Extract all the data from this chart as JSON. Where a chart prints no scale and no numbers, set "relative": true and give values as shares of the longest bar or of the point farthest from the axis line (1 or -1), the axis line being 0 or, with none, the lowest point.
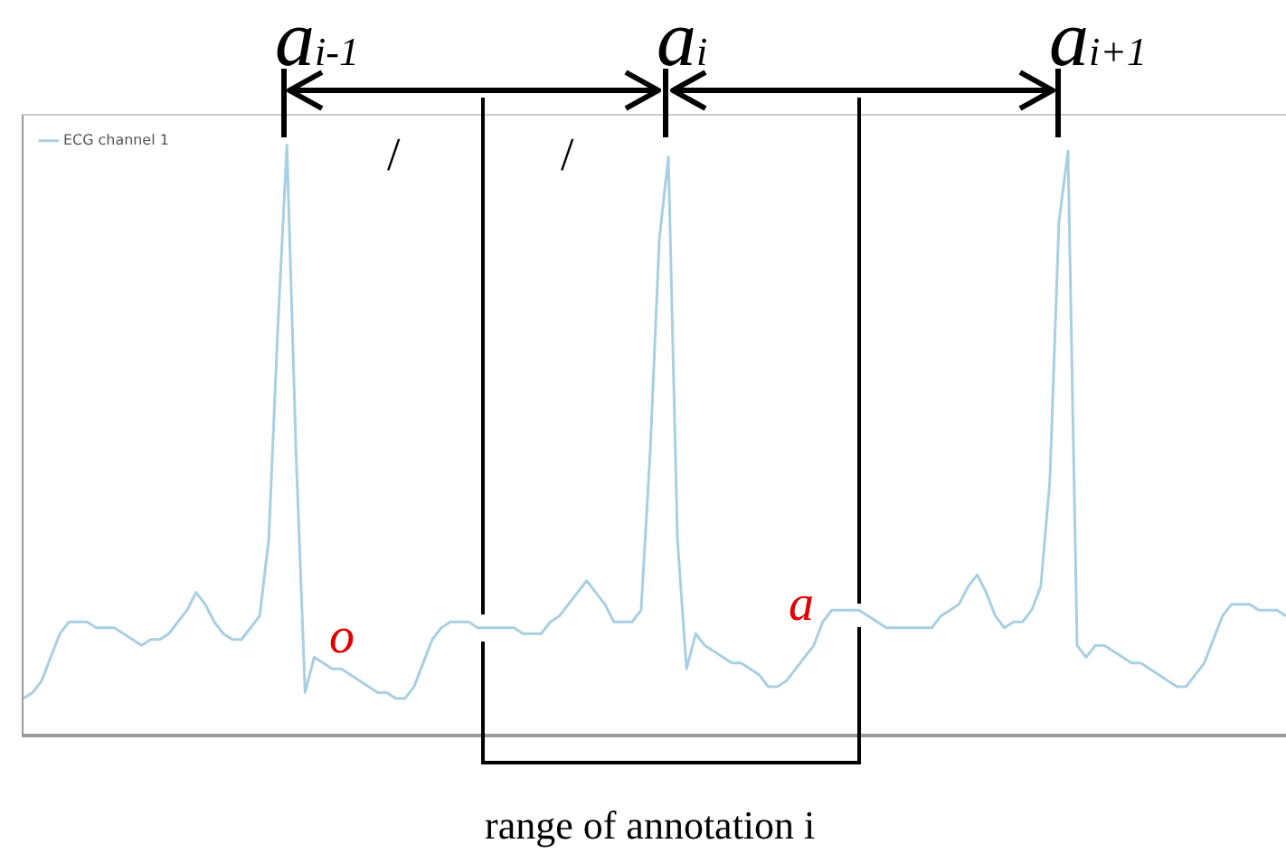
{
  "chart_data": {
    "type": "line",
    "relative": true,
    "legend": "top left",
    "grid": false,
    "marker": "none",
    "line_style": "solid",
    "categories": [
      null,
      null,
      null,
      null,
      null,
      null,
      null,
      null,
      null,
      null,
      null,
      null,
      null,
      null,
      null,
      null,
      null,
      null,
      null,
      null,
      null,
      null,
      null,
      null,
      null,
      null,
      null,
      null,
      null,
      null,
      null,
      null,
      null,
      null,
      null,
      null,
      null,
      null,
      null,
      null,
      null,
      null,
      null,
      null,
      null,
      null,
      null,
      null,
      null,
      null,
      null,
      null,
      null,
      null,
      null,
      null,
      null,
      null,
      null,
      null,
      null,
      null,
      null,
      null,
      null,
      null,
      null,
      null,
      null,
      null,
      null,
      null,
      null,
      null,
      null,
      null,
      null,
      null,
      null,
      null,
      null,
      null,
      null,
      null,
      null,
      null,
      null,
      null,
      null,
      null,
      null,
      null,
      null,
      null,
      null,
      null,
      null,
      null,
      null,
      null,
      null,
      null,
      null,
      null,
      null,
      null,
      null,
      null,
      null,
      null,
      null,
      null,
      null,
      null,
      null,
      null,
      null,
      null,
      null,
      null,
      null,
      null,
      null,
      null,
      null,
      null,
      null,
      null,
      null,
      null,
      null,
      null,
      null,
      null,
      null,
      null,
      null,
      null,
      null,
      null
    ],
    "series": [
      {
        "name": "ECG channel 1",
        "color": "#a9cfe3",
        "values": [
          0.06,
          0.07,
          0.09,
          0.13,
          0.17,
          0.19,
          0.19,
          0.19,
          0.18,
          0.18,
          0.18,
          0.17,
          0.16,
          0.15,
          0.16,
          0.16,
          0.17,
          0.19,
          0.21,
          0.24,
          0.22,
          0.19,
          0.17,
          0.16,
          0.16,
          0.18,
          0.2,
          0.33,
          0.69,
          1.0,
          0.48,
          0.07,
          0.13,
          0.12,
          0.11,
          0.11,
          0.1,
          0.09,
          0.08,
          0.07,
          0.07,
          0.06,
          0.06,
          0.08,
          0.12,
          0.16,
          0.18,
          0.19,
          0.19,
          0.19,
          0.18,
          0.18,
          0.18,
          0.18,
          0.18,
          0.17,
          0.17,
          0.17,
          0.19,
          0.2,
          0.22,
          0.24,
          0.26,
          0.24,
          0.22,
          0.19,
          0.19,
          0.19,
          0.21,
          0.48,
          0.84,
          0.98,
          0.33,
          0.11,
          0.17,
          0.15,
          0.14,
          0.13,
          0.12,
          0.12,
          0.11,
          0.1,
          0.08,
          0.08,
          0.09,
          0.11,
          0.13,
          0.15,
          0.19,
          0.21,
          0.21,
          0.21,
          0.21,
          0.2,
          0.19,
          0.18,
          0.18,
          0.18,
          0.18,
          0.18,
          0.18,
          0.2,
          0.21,
          0.22,
          0.25,
          0.27,
          0.24,
          0.2,
          0.18,
          0.19,
          0.19,
          0.21,
          0.25,
          0.43,
          0.87,
          0.99,
          0.15,
          0.13,
          0.15,
          0.15,
          0.14,
          0.13,
          0.12,
          0.12,
          0.11,
          0.1,
          0.09,
          0.08,
          0.08,
          0.1,
          0.12,
          0.16,
          0.2,
          0.22,
          0.22,
          0.22,
          0.21,
          0.21,
          0.21,
          0.2
        ]
      }
    ],
    "annotations": [
      "a$_{i-1}$",
      "a$_{i}$",
      "a$_{i+1}$",
      "/",
      "/",
      "o",
      "a",
      "range of annotation i"
    ]
  }
}
